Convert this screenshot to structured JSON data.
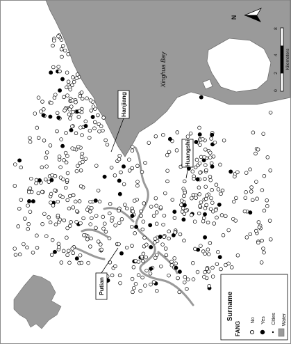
{
  "map": {
    "bay_label": "Xinghua Bay",
    "cities": [
      "Hanjiang",
      "Huangshi",
      "Putian"
    ],
    "colors": {
      "water": "#9a9a9a",
      "river": "#9a9a9a",
      "border": "#8a8a8a",
      "point_no": "#ffffff",
      "point_yes": "#000000"
    }
  },
  "legend": {
    "title": "Surname",
    "subtitle": "FANG",
    "items": [
      {
        "label": "No",
        "symbol": "open-circle"
      },
      {
        "label": "Yes",
        "symbol": "filled-circle"
      },
      {
        "label": "Cities",
        "symbol": "small-dot"
      },
      {
        "label": "Water",
        "symbol": "gray-square"
      }
    ]
  },
  "scale_bar": {
    "ticks": [
      "0",
      "2",
      "4",
      "8"
    ],
    "unit": "Kilometers"
  },
  "north_arrow": {
    "label": "N",
    "icon": "north-arrow-icon"
  }
}
